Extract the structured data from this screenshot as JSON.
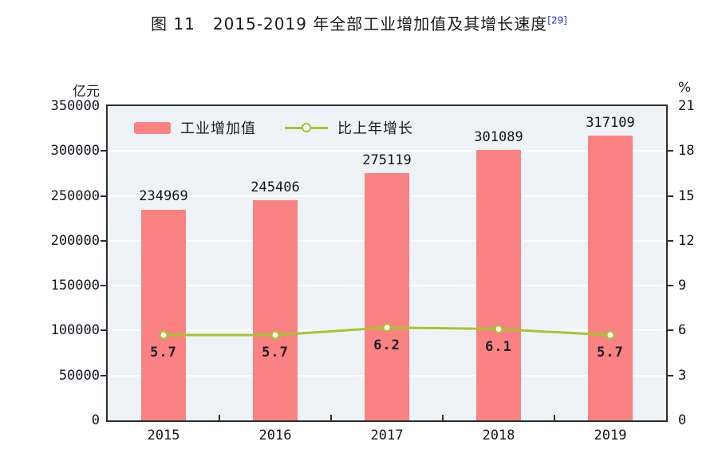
{
  "title": {
    "text": "图 11   2015-2019 年全部工业增加值及其增长速度",
    "superscript": "[29]"
  },
  "chart_data": {
    "type": "bar+line",
    "categories": [
      "2015",
      "2016",
      "2017",
      "2018",
      "2019"
    ],
    "series": [
      {
        "name": "工业增加值",
        "type": "bar",
        "axis": "left",
        "values": [
          234969,
          245406,
          275119,
          301089,
          317109
        ],
        "color": "#fa8282"
      },
      {
        "name": "比上年增长",
        "type": "line",
        "axis": "right",
        "values": [
          5.7,
          5.7,
          6.2,
          6.1,
          5.7
        ],
        "color": "#a5c52f",
        "marker": "circle-white-fill"
      }
    ],
    "left_axis": {
      "unit": "亿元",
      "min": 0,
      "max": 350000,
      "step": 50000
    },
    "right_axis": {
      "unit": "%",
      "min": 0,
      "max": 21,
      "step": 3
    },
    "grid": true,
    "grid_color": "#ffffff",
    "plot_background": "#eef3f7",
    "legend_position": "top-left-inside"
  }
}
